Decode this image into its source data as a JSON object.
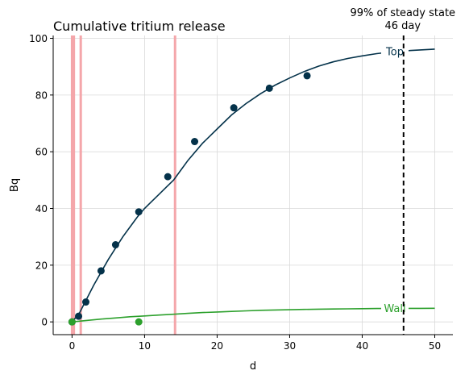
{
  "chart_data": {
    "type": "line",
    "title": "Cumulative tritium release",
    "xlabel": "d",
    "ylabel": "Bq",
    "xlim": [
      -2.6,
      52.5
    ],
    "ylim": [
      -4.5,
      101
    ],
    "xticks": [
      0,
      10,
      20,
      30,
      40,
      50
    ],
    "yticks": [
      0,
      20,
      40,
      60,
      80,
      100
    ],
    "grid": true,
    "series": [
      {
        "name": "Top",
        "color": "#04324a",
        "line": {
          "x": [
            0,
            1,
            2,
            3,
            4,
            5,
            6,
            7,
            8,
            9,
            10,
            11,
            12,
            13,
            14,
            15,
            16,
            18,
            20,
            22,
            24,
            26,
            28,
            30,
            32,
            34,
            36,
            38,
            40,
            42,
            44,
            46,
            48,
            50
          ],
          "y": [
            0,
            3,
            8,
            13,
            17.5,
            22,
            26,
            30,
            33.5,
            37,
            40,
            42.5,
            45,
            47.5,
            50,
            53.5,
            57,
            63,
            68,
            73,
            77,
            80.5,
            83.5,
            86,
            88.3,
            90.2,
            91.7,
            92.9,
            93.8,
            94.6,
            95.2,
            95.6,
            95.9,
            96.2
          ]
        },
        "points": {
          "x": [
            0,
            0.9,
            1.9,
            4,
            6,
            9.2,
            13.2,
            16.9,
            22.3,
            27.2,
            32.4
          ],
          "y": [
            0,
            2,
            7,
            18,
            27.2,
            38.8,
            51.2,
            63.6,
            75.5,
            82.4,
            86.8
          ]
        }
      },
      {
        "name": "Wall",
        "color": "#2ca02c",
        "line": {
          "x": [
            0,
            2,
            4,
            6,
            8,
            10,
            12,
            14,
            16,
            18,
            20,
            22,
            24,
            26,
            28,
            30,
            32,
            34,
            36,
            38,
            40,
            42,
            44,
            46,
            48,
            50
          ],
          "y": [
            0,
            0.5,
            1,
            1.4,
            1.8,
            2.1,
            2.4,
            2.7,
            3,
            3.3,
            3.5,
            3.7,
            3.9,
            4.1,
            4.2,
            4.3,
            4.4,
            4.5,
            4.55,
            4.6,
            4.65,
            4.7,
            4.72,
            4.75,
            4.77,
            4.8
          ]
        },
        "points": {
          "x": [
            0,
            9.2
          ],
          "y": [
            0,
            0
          ]
        }
      }
    ],
    "vertical_bands": {
      "color": "#f4a6aa",
      "x": [
        0,
        0.25,
        1.2,
        14.2
      ]
    },
    "steady_state": {
      "x": 45.7,
      "label_line1": "99% of steady state",
      "label_line2": "46 day"
    }
  }
}
